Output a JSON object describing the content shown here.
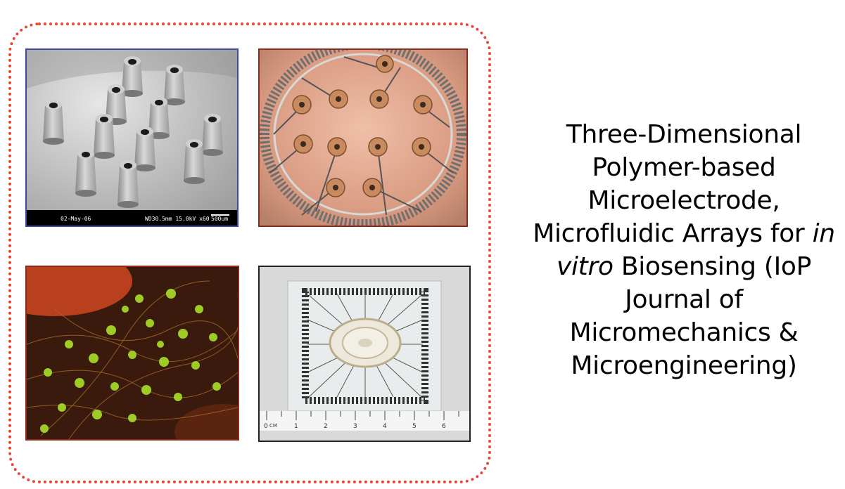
{
  "caption": {
    "line1": "Three-Dimensional",
    "line2": "Polymer-based",
    "line3": "Microelectrode,",
    "line4_pre": "Microfluidic Arrays for ",
    "line4_italic": "in",
    "line5_italic": "vitro",
    "line5_post": " Biosensing (IoP",
    "line6": "Journal of",
    "line7": "Micromechanics &",
    "line8": "Microengineering)"
  },
  "images": {
    "sem": {
      "footer_date": "02-May-06",
      "footer_params": "WD30.5mm 15.0kV x60",
      "footer_scale": "500um"
    },
    "ruler": {
      "unit_label": "CM",
      "ticks": [
        "0",
        "1",
        "2",
        "3",
        "4",
        "5",
        "6"
      ]
    }
  },
  "colors": {
    "frame": "#e8462e",
    "sem_border": "#3d4a9c",
    "red_border": "#8b2a1c",
    "chip_border": "#222222"
  }
}
